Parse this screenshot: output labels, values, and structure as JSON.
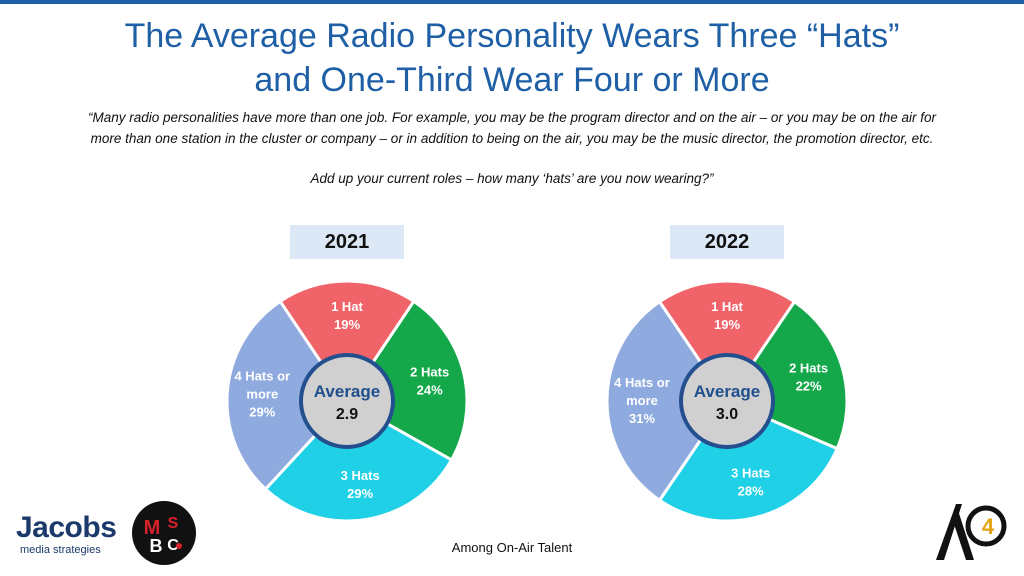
{
  "title": {
    "line1": "The Average Radio Personality Wears Three “Hats”",
    "line2": "and One-Third Wear Four or More"
  },
  "quote": {
    "line1": "“Many radio personalities have more than one job. For example, you may be the program director and on the air – or you may be on the air for",
    "line2": "more than one station in the cluster or company – or in addition to being on the air, you may be the music director, the promotion director, etc.",
    "question": "Add up your current roles – how many ‘hats’ are you now wearing?”"
  },
  "footer": "Among On-Air Talent",
  "logos": {
    "jacobs_name": "Jacobs",
    "jacobs_sub": "media strategies",
    "msbc": "MSBC",
    "a4": "A4"
  },
  "colors": {
    "title": "#1f5fa6",
    "year_box": "#dde8f6",
    "center_fill": "#d0d0d0",
    "center_ring": "#244f8f"
  },
  "chart_data": [
    {
      "type": "pie",
      "title": "2021",
      "center_label": "Average",
      "center_value": "2.9",
      "slices": [
        {
          "label": "1 Hat",
          "label_lines": [
            "1 Hat"
          ],
          "value": 19,
          "display": "19%",
          "color": "#f06368"
        },
        {
          "label": "2 Hats",
          "label_lines": [
            "2 Hats"
          ],
          "value": 24,
          "display": "24%",
          "color": "#14a84a"
        },
        {
          "label": "3 Hats",
          "label_lines": [
            "3 Hats"
          ],
          "value": 29,
          "display": "29%",
          "color": "#1fd0e6"
        },
        {
          "label": "4 Hats or more",
          "label_lines": [
            "4 Hats or",
            "more"
          ],
          "value": 29,
          "display": "29%",
          "color": "#8eaadf"
        }
      ]
    },
    {
      "type": "pie",
      "title": "2022",
      "center_label": "Average",
      "center_value": "3.0",
      "slices": [
        {
          "label": "1 Hat",
          "label_lines": [
            "1 Hat"
          ],
          "value": 19,
          "display": "19%",
          "color": "#f06368"
        },
        {
          "label": "2 Hats",
          "label_lines": [
            "2 Hats"
          ],
          "value": 22,
          "display": "22%",
          "color": "#14a84a"
        },
        {
          "label": "3 Hats",
          "label_lines": [
            "3 Hats"
          ],
          "value": 28,
          "display": "28%",
          "color": "#1fd0e6"
        },
        {
          "label": "4 Hats or more",
          "label_lines": [
            "4 Hats or",
            "more"
          ],
          "value": 31,
          "display": "31%",
          "color": "#8eaadf"
        }
      ]
    }
  ]
}
